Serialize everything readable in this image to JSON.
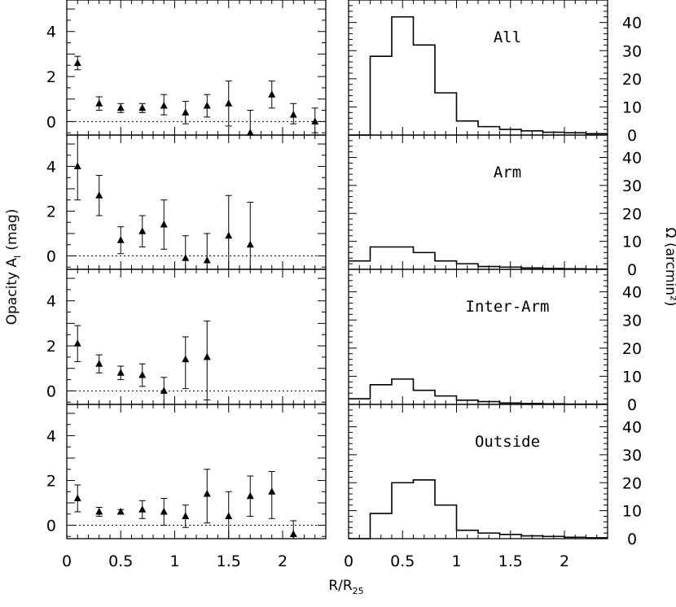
{
  "chart_data": {
    "type": "multi-panel",
    "xlabel": "R/R25",
    "xlabel_main": "R/R",
    "xlabel_sub": "25",
    "left_ylabel": "Opacity A",
    "left_ylabel_sub": "I",
    "left_ylabel_unit": "(mag)",
    "right_ylabel": "Ω (arcmin²)",
    "left_xlim": [
      0,
      2.4
    ],
    "right_xlim": [
      0,
      2.4
    ],
    "left_ylim": [
      -0.6,
      5.4
    ],
    "right_ylim": [
      0,
      48
    ],
    "left_xticks": [
      "0",
      "0.5",
      "1",
      "1.5",
      "2"
    ],
    "right_xticks": [
      "0",
      "0.5",
      "1",
      "1.5",
      "2"
    ],
    "left_yticks": [
      "0",
      "2",
      "4"
    ],
    "right_yticks": [
      "0",
      "10",
      "20",
      "30",
      "40"
    ],
    "zero_line_style": "dotted",
    "panels": [
      {
        "label": "All",
        "scatter": {
          "type": "scatter",
          "x": [
            0.1,
            0.3,
            0.5,
            0.7,
            0.9,
            1.1,
            1.3,
            1.5,
            1.7,
            1.9,
            2.1,
            2.3
          ],
          "y": [
            2.6,
            0.8,
            0.6,
            0.6,
            0.7,
            0.4,
            0.7,
            0.8,
            -0.5,
            1.2,
            0.3,
            0.0
          ],
          "yerr_low": [
            0.3,
            0.3,
            0.2,
            0.2,
            0.4,
            0.5,
            0.5,
            1.0,
            1.0,
            0.6,
            0.4,
            0.5
          ],
          "yerr_high": [
            0.3,
            0.3,
            0.2,
            0.2,
            0.5,
            0.5,
            0.5,
            1.0,
            1.0,
            0.6,
            0.5,
            0.6
          ]
        },
        "histogram": {
          "type": "histogram",
          "bin_edges": [
            0.0,
            0.2,
            0.4,
            0.6,
            0.8,
            1.0,
            1.2,
            1.4,
            1.6,
            1.8,
            2.0,
            2.2,
            2.4
          ],
          "values": [
            0,
            28,
            42,
            32,
            15,
            5,
            3,
            2,
            1.5,
            1,
            0.8,
            0.5
          ]
        }
      },
      {
        "label": "Arm",
        "scatter": {
          "type": "scatter",
          "x": [
            0.1,
            0.3,
            0.5,
            0.7,
            0.9,
            1.1,
            1.3,
            1.5,
            1.7
          ],
          "y": [
            4.0,
            2.7,
            0.7,
            1.1,
            1.4,
            -0.1,
            -0.2,
            0.9,
            0.5
          ],
          "yerr_low": [
            1.5,
            0.9,
            0.6,
            0.7,
            1.1,
            1.0,
            1.1,
            1.8,
            1.9
          ],
          "yerr_high": [
            1.5,
            0.9,
            0.6,
            0.7,
            1.1,
            1.0,
            1.2,
            1.8,
            1.9
          ]
        },
        "histogram": {
          "type": "histogram",
          "bin_edges": [
            0.0,
            0.2,
            0.4,
            0.6,
            0.8,
            1.0,
            1.2,
            1.4,
            1.6,
            1.8,
            2.0,
            2.2,
            2.4
          ],
          "values": [
            3,
            8,
            8,
            6,
            3,
            2,
            1,
            0.8,
            0.5,
            0.3,
            0.2,
            0.1
          ]
        }
      },
      {
        "label": "Inter-Arm",
        "scatter": {
          "type": "scatter",
          "x": [
            0.1,
            0.3,
            0.5,
            0.7,
            0.9,
            1.1,
            1.3
          ],
          "y": [
            2.1,
            1.2,
            0.8,
            0.7,
            0.0,
            1.4,
            1.5
          ],
          "yerr_low": [
            0.8,
            0.4,
            0.3,
            0.5,
            0.6,
            1.3,
            1.9
          ],
          "yerr_high": [
            0.8,
            0.4,
            0.3,
            0.5,
            0.6,
            1.0,
            1.6
          ]
        },
        "histogram": {
          "type": "histogram",
          "bin_edges": [
            0.0,
            0.2,
            0.4,
            0.6,
            0.8,
            1.0,
            1.2,
            1.4,
            1.6,
            1.8,
            2.0,
            2.2,
            2.4
          ],
          "values": [
            2,
            7,
            9,
            5,
            3,
            1.5,
            1,
            0.5,
            0.3,
            0.2,
            0.1,
            0.1
          ]
        }
      },
      {
        "label": "Outside",
        "scatter": {
          "type": "scatter",
          "x": [
            0.1,
            0.3,
            0.5,
            0.7,
            0.9,
            1.1,
            1.3,
            1.5,
            1.7,
            1.9,
            2.1
          ],
          "y": [
            1.2,
            0.6,
            0.6,
            0.7,
            0.6,
            0.4,
            1.4,
            0.4,
            1.3,
            1.5,
            -0.4
          ],
          "yerr_low": [
            0.6,
            0.2,
            0.1,
            0.4,
            0.6,
            0.5,
            1.3,
            1.0,
            0.9,
            1.2,
            0.6
          ],
          "yerr_high": [
            0.6,
            0.2,
            0.1,
            0.4,
            0.6,
            0.5,
            1.1,
            1.1,
            0.9,
            0.9,
            0.6
          ]
        },
        "histogram": {
          "type": "histogram",
          "bin_edges": [
            0.0,
            0.2,
            0.4,
            0.6,
            0.8,
            1.0,
            1.2,
            1.4,
            1.6,
            1.8,
            2.0,
            2.2,
            2.4
          ],
          "values": [
            0,
            9,
            20,
            21,
            12,
            3,
            2,
            1.5,
            1,
            0.8,
            0.5,
            0.3
          ]
        }
      }
    ]
  }
}
